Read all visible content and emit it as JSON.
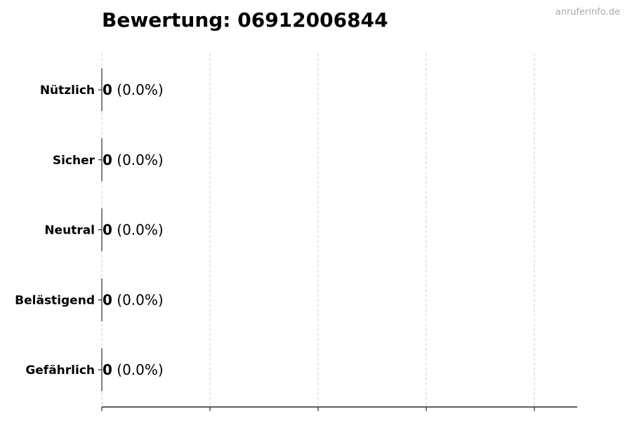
{
  "watermark": "anruferinfo.de",
  "chart_data": {
    "type": "bar",
    "orientation": "horizontal",
    "title": "Bewertung: 06912006844",
    "categories": [
      "Nützlich",
      "Sicher",
      "Neutral",
      "Belästigend",
      "Gefährlich"
    ],
    "values": [
      0,
      0,
      0,
      0,
      0
    ],
    "percent_labels": [
      "(0.0%)",
      "(0.0%)",
      "(0.0%)",
      "(0.0%)",
      "(0.0%)"
    ],
    "xlabel": "",
    "ylabel": "",
    "x_tick_count": 5,
    "x_tick_labels_shown": false,
    "grid": "x dashed",
    "legend": "none"
  }
}
